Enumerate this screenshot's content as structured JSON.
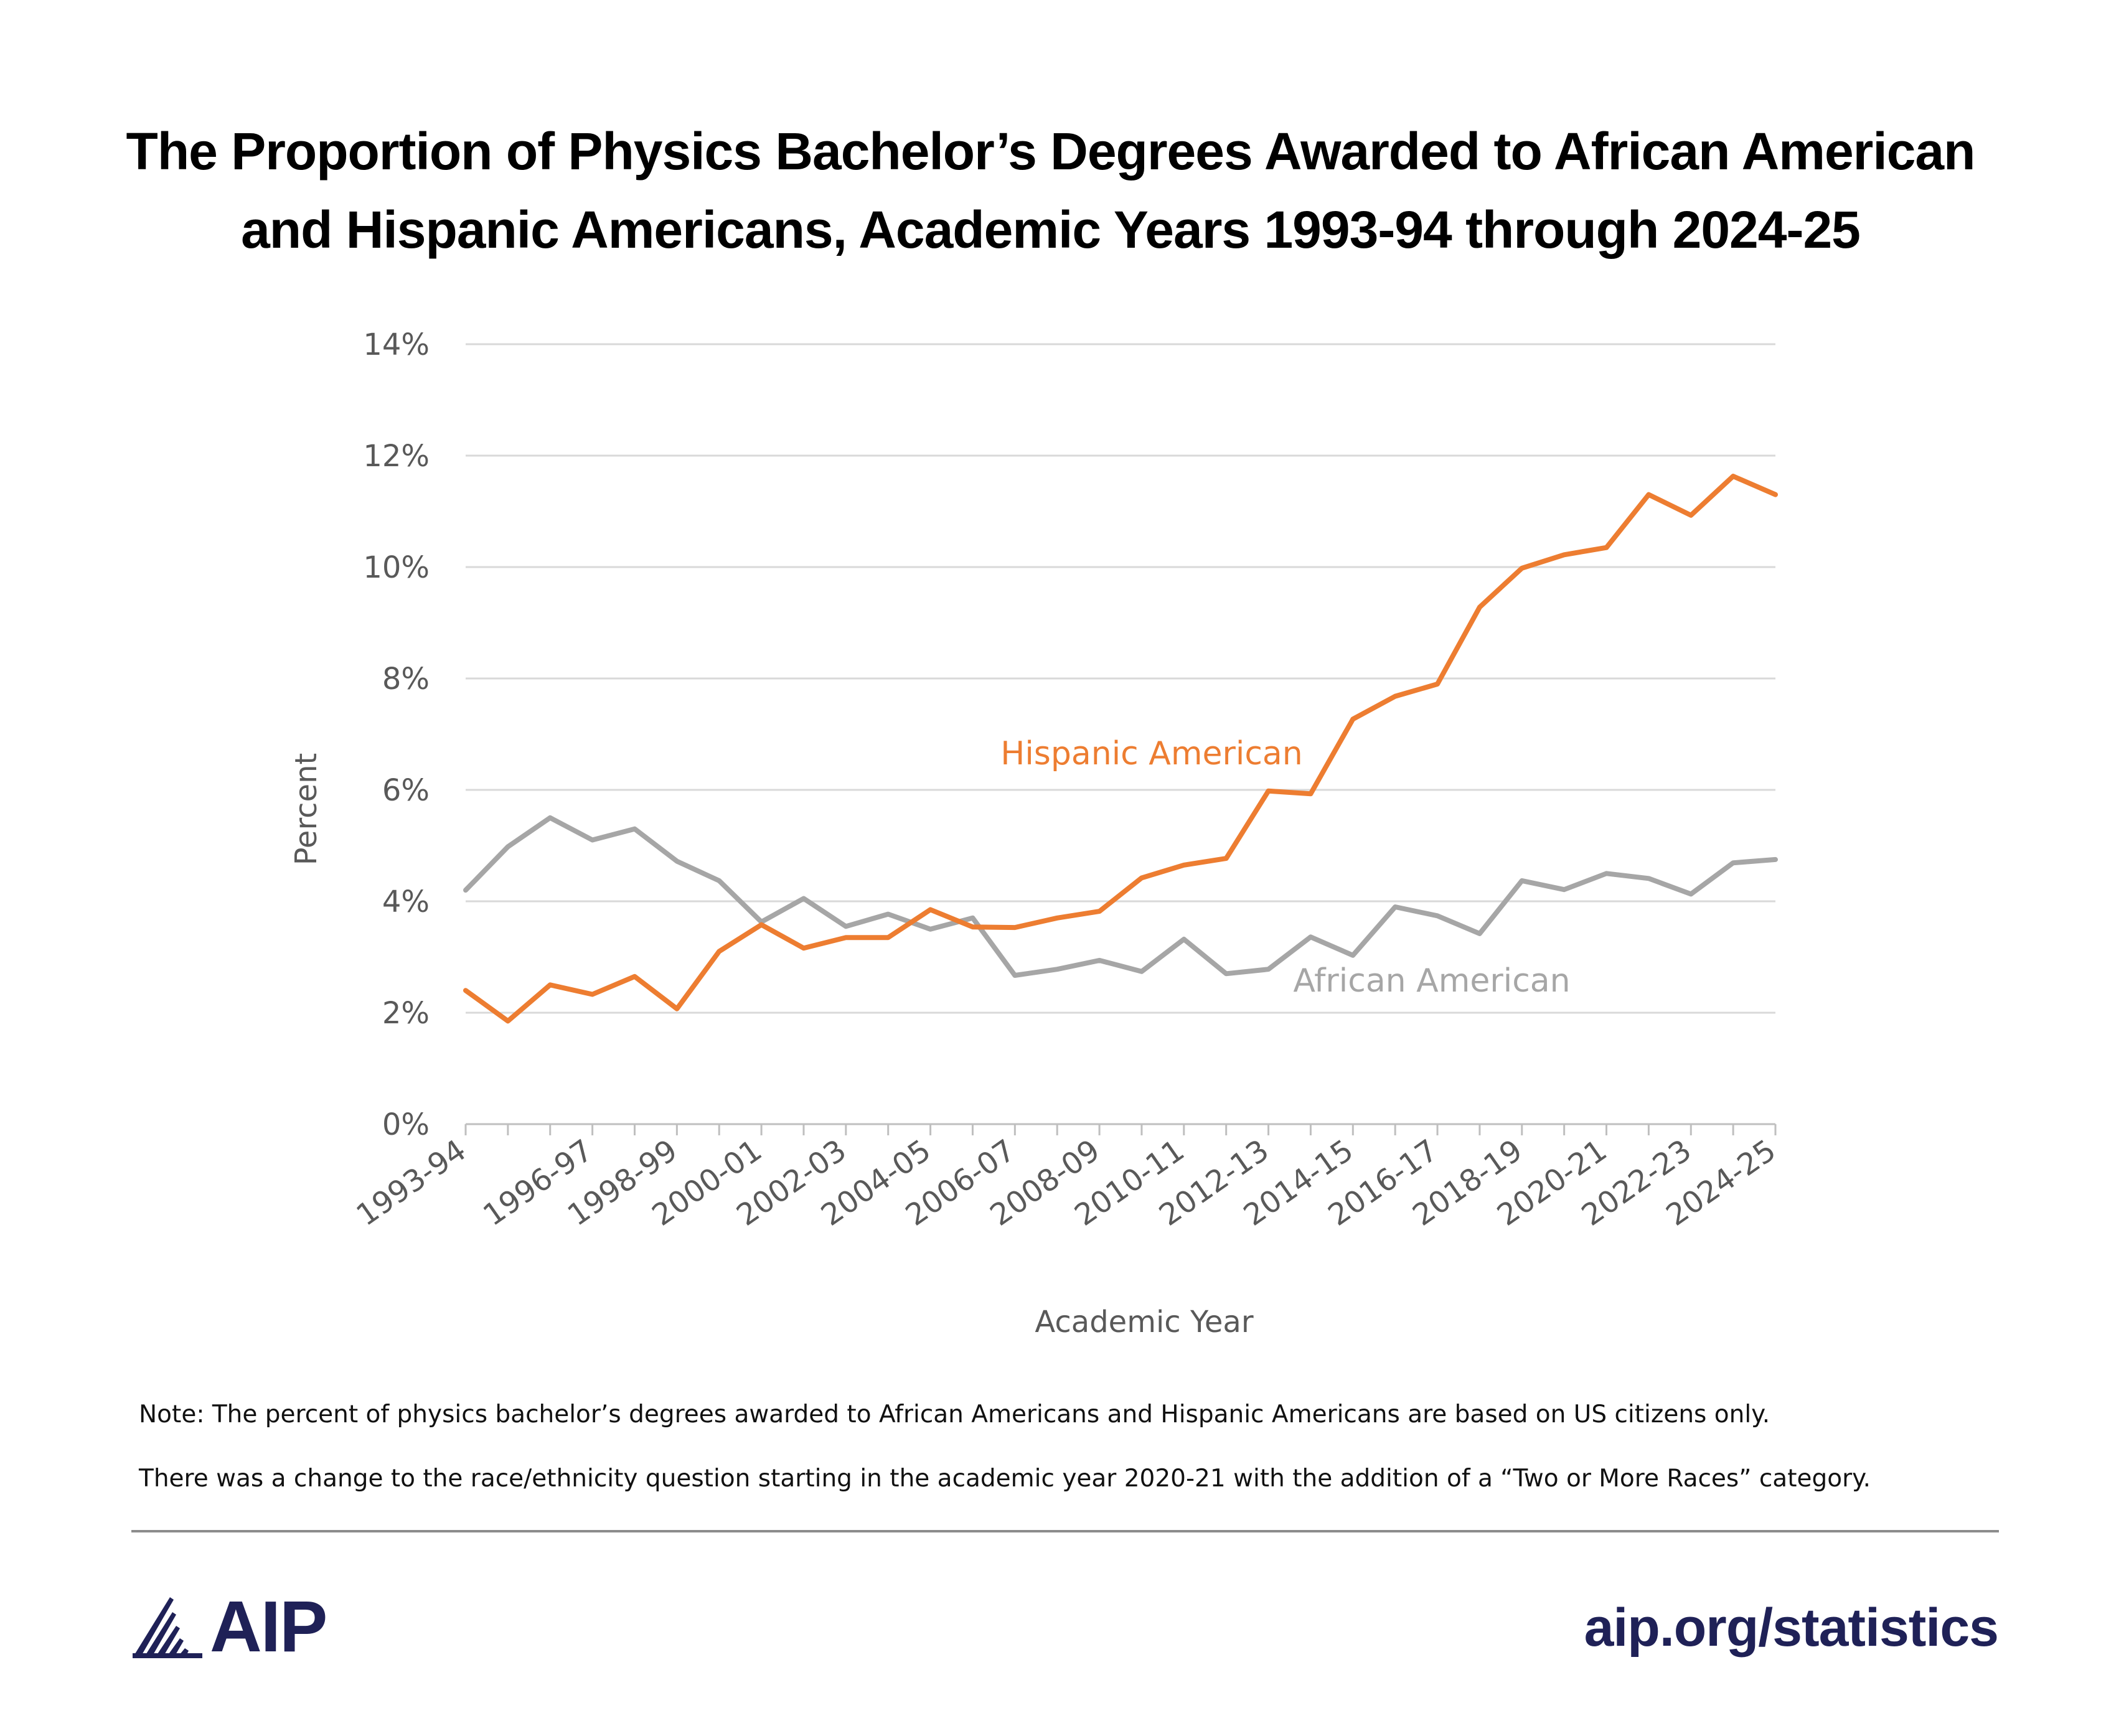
{
  "title": {
    "line1": "The Proportion of Physics Bachelor’s Degrees Awarded to African American",
    "line2": "and Hispanic Americans, Academic Years 1993-94 through 2024-25"
  },
  "chart_data": {
    "type": "line",
    "xlabel": "Academic Year",
    "ylabel": "Percent",
    "ylim": [
      0,
      14
    ],
    "ytick_step": 2,
    "ytick_labels": [
      "0%",
      "2%",
      "4%",
      "6%",
      "8%",
      "10%",
      "12%",
      "14%"
    ],
    "grid": "horizontal",
    "x": [
      "1993-94",
      "1994-95",
      "1995-96",
      "1996-97",
      "1997-98",
      "1998-99",
      "1999-00",
      "2000-01",
      "2001-02",
      "2002-03",
      "2003-04",
      "2004-05",
      "2005-06",
      "2006-07",
      "2007-08",
      "2008-09",
      "2009-10",
      "2010-11",
      "2011-12",
      "2012-13",
      "2013-14",
      "2014-15",
      "2015-16",
      "2016-17",
      "2017-18",
      "2018-19",
      "2019-20",
      "2020-21",
      "2021-22",
      "2022-23",
      "2023-24",
      "2024-25"
    ],
    "x_tick_labels": [
      "1993-94",
      "1996-97",
      "1998-99",
      "2000-01",
      "2002-03",
      "2004-05",
      "2006-07",
      "2008-09",
      "2010-11",
      "2012-13",
      "2014-15",
      "2016-17",
      "2018-19",
      "2020-21",
      "2022-23",
      "2024-25"
    ],
    "series": [
      {
        "name": "Hispanic American",
        "color": "#ed7d31",
        "values": [
          2.4,
          1.85,
          2.5,
          2.33,
          2.65,
          2.07,
          3.1,
          3.58,
          3.16,
          3.35,
          3.35,
          3.85,
          3.54,
          3.53,
          3.7,
          3.82,
          4.42,
          4.65,
          4.77,
          5.98,
          5.93,
          7.27,
          7.68,
          7.9,
          9.28,
          9.98,
          10.22,
          10.35,
          11.3,
          10.93,
          11.63,
          11.3
        ]
      },
      {
        "name": "African American",
        "color": "#a6a6a6",
        "values": [
          4.2,
          4.98,
          5.5,
          5.1,
          5.3,
          4.72,
          4.37,
          3.63,
          4.05,
          3.55,
          3.77,
          3.5,
          3.7,
          2.67,
          2.78,
          2.94,
          2.74,
          3.32,
          2.7,
          2.78,
          3.36,
          3.03,
          3.9,
          3.74,
          3.42,
          4.37,
          4.21,
          4.5,
          4.41,
          4.13,
          4.69,
          4.75
        ]
      }
    ]
  },
  "notes": {
    "note1": "Note: The percent of physics bachelor’s degrees awarded to African Americans and Hispanic Americans are based on US citizens only.",
    "note2": "There was a change to the race/ethnicity question starting in the academic year 2020-21 with the addition of a “Two or More Races” category."
  },
  "footer": {
    "logo_text": "AIP",
    "logo_icon": "aip-rays-logo-icon",
    "website": "aip.org/statistics"
  },
  "colors": {
    "brand": "#1f2157",
    "grid": "#d9d9d9",
    "axis_text": "#595959"
  }
}
